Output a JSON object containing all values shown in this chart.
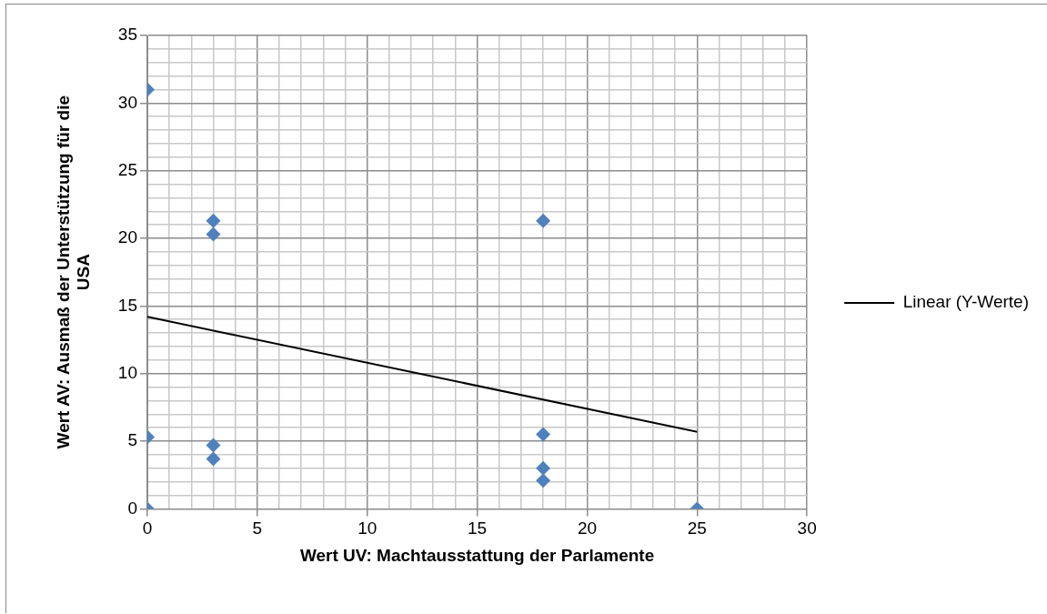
{
  "chart_data": {
    "type": "scatter",
    "xlabel": "Wert UV: Machtausstattung der Parlamente",
    "ylabel": "Wert AV: Ausmaß der Unterstützung für die USA",
    "series": [
      {
        "color": "#4f81bd",
        "marker": "diamond",
        "x": [
          0,
          0,
          0,
          3,
          3,
          3,
          3,
          18,
          18,
          18,
          18,
          25
        ],
        "values": [
          31,
          5.3,
          0,
          21.3,
          20.3,
          4.7,
          3.7,
          21.3,
          5.5,
          3.0,
          2.1,
          0
        ]
      },
      {
        "type": "line",
        "name": "Linear (Y-Werte)",
        "color": "#000000",
        "marker": "none",
        "x": [
          0,
          25
        ],
        "values": [
          14.2,
          5.7
        ]
      }
    ],
    "xlim": [
      0,
      30
    ],
    "xticks": [
      0,
      {
        "value": 1,
        "label": null
      },
      {
        "value": 2,
        "label": null
      },
      {
        "value": 3,
        "label": null
      },
      {
        "value": 4,
        "label": null
      },
      5,
      {
        "value": 6,
        "label": null
      },
      {
        "value": 7,
        "label": null
      },
      {
        "value": 8,
        "label": null
      },
      {
        "value": 9,
        "label": null
      },
      10,
      {
        "value": 11,
        "label": null
      },
      {
        "value": 12,
        "label": null
      },
      {
        "value": 13,
        "label": null
      },
      {
        "value": 14,
        "label": null
      },
      15,
      {
        "value": 16,
        "label": null
      },
      {
        "value": 17,
        "label": null
      },
      {
        "value": 18,
        "label": null
      },
      {
        "value": 19,
        "label": null
      },
      20,
      {
        "value": 21,
        "label": null
      },
      {
        "value": 22,
        "label": null
      },
      {
        "value": 23,
        "label": null
      },
      {
        "value": 24,
        "label": null
      },
      25,
      {
        "value": 26,
        "label": null
      },
      {
        "value": 27,
        "label": null
      },
      {
        "value": 28,
        "label": null
      },
      {
        "value": 29,
        "label": null
      },
      30
    ],
    "ylim": [
      0,
      35
    ],
    "yticks": [
      0,
      {
        "value": 1,
        "label": null
      },
      {
        "value": 2,
        "label": null
      },
      {
        "value": 3,
        "label": null
      },
      {
        "value": 4,
        "label": null
      },
      5,
      {
        "value": 6,
        "label": null
      },
      {
        "value": 7,
        "label": null
      },
      {
        "value": 8,
        "label": null
      },
      {
        "value": 9,
        "label": null
      },
      10,
      {
        "value": 11,
        "label": null
      },
      {
        "value": 12,
        "label": null
      },
      {
        "value": 13,
        "label": null
      },
      {
        "value": 14,
        "label": null
      },
      15,
      {
        "value": 16,
        "label": null
      },
      {
        "value": 17,
        "label": null
      },
      {
        "value": 18,
        "label": null
      },
      {
        "value": 19,
        "label": null
      },
      20,
      {
        "value": 21,
        "label": null
      },
      {
        "value": 22,
        "label": null
      },
      {
        "value": 23,
        "label": null
      },
      {
        "value": 24,
        "label": null
      },
      25,
      {
        "value": 26,
        "label": null
      },
      {
        "value": 27,
        "label": null
      },
      {
        "value": 28,
        "label": null
      },
      {
        "value": 29,
        "label": null
      },
      30,
      {
        "value": 31,
        "label": null
      },
      {
        "value": 32,
        "label": null
      },
      {
        "value": 33,
        "label": null
      },
      {
        "value": 34,
        "label": null
      },
      35
    ],
    "grid": true,
    "legend": "right"
  }
}
